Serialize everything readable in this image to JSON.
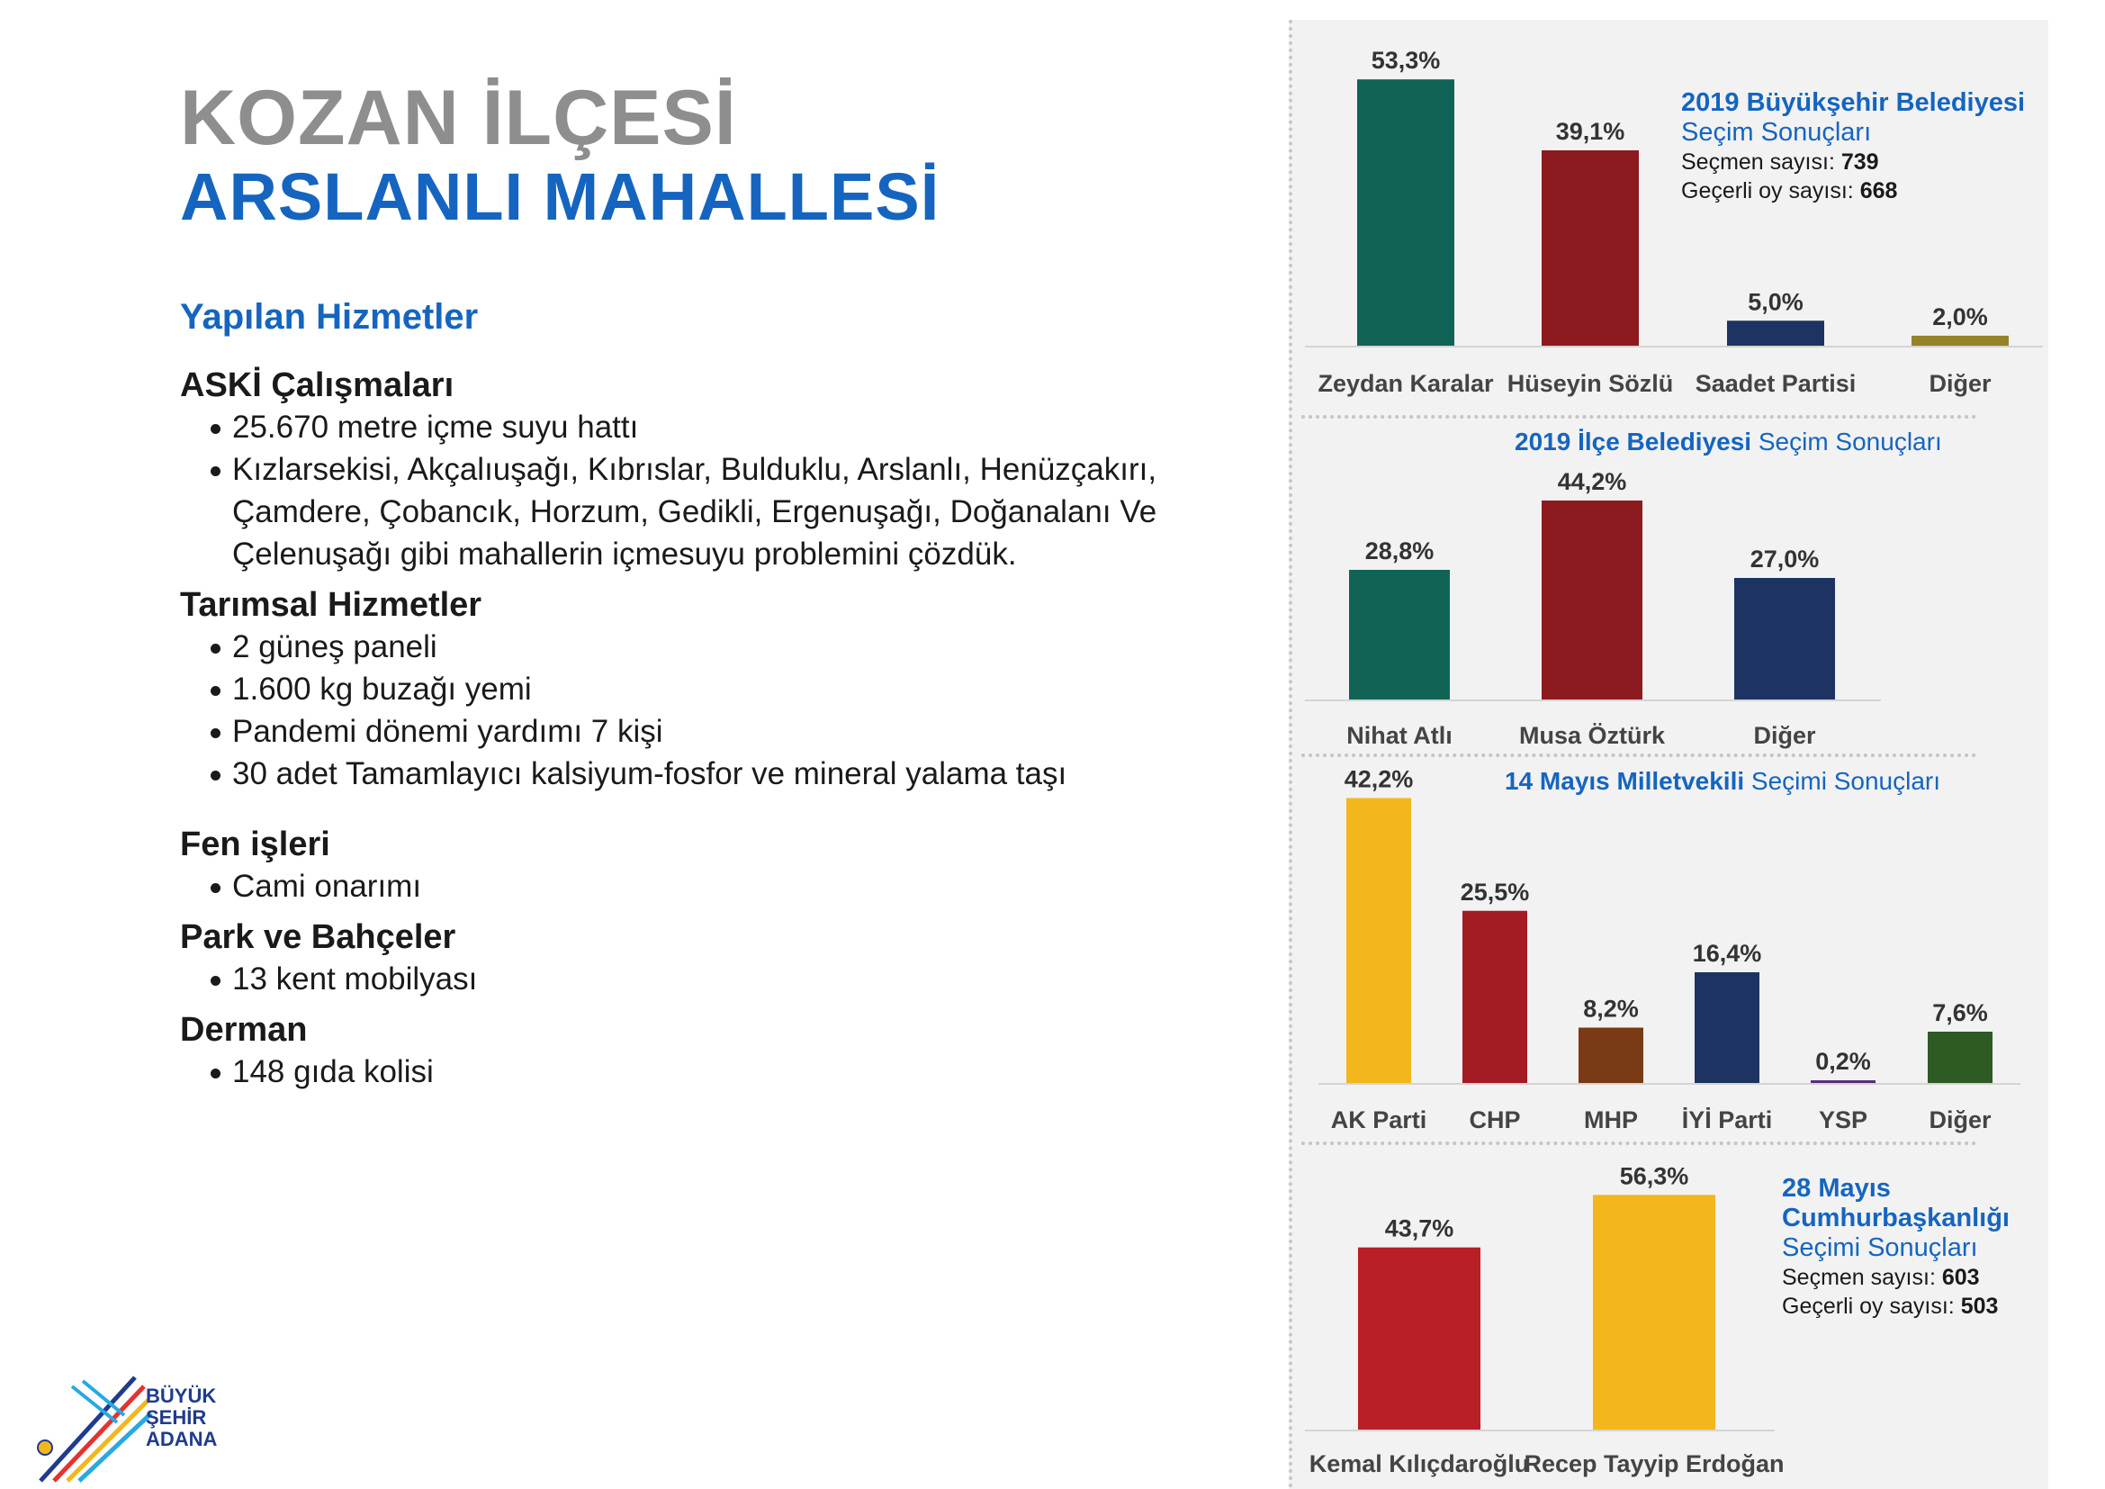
{
  "page": {
    "title_line1": "KOZAN İLÇESİ",
    "title_line2": "ARSLANLI MAHALLESİ",
    "services_heading": "Yapılan Hizmetler"
  },
  "services": [
    {
      "title": "ASKİ Çalışmaları",
      "items": [
        "25.670 metre içme suyu hattı",
        "Kızlarsekisi, Akçalıuşağı, Kıbrıslar, Bulduklu, Arslanlı, Henüzçakırı, Çamdere, Çobancık, Horzum, Gedikli, Ergenuşağı, Doğanalanı Ve Çelenuşağı gibi mahallerin içmesuyu problemini çözdük."
      ]
    },
    {
      "title": "Tarımsal Hizmetler",
      "items": [
        "2 güneş paneli",
        "1.600 kg buzağı yemi",
        "Pandemi dönemi yardımı 7 kişi",
        "30 adet Tamamlayıcı kalsiyum-fosfor ve mineral yalama taşı"
      ]
    },
    {
      "title": "Fen işleri",
      "items": [
        "Cami onarımı"
      ]
    },
    {
      "title": "Park ve Bahçeler",
      "items": [
        "13 kent mobilyası"
      ]
    },
    {
      "title": "Derman",
      "items": [
        "148 gıda kolisi"
      ]
    }
  ],
  "logo": {
    "line1": "BÜYÜK",
    "line2": "ŞEHİR",
    "line3": "ADANA"
  },
  "colors": {
    "accent": "#1565c0",
    "title_gray": "#8e8e8e",
    "panel_bg": "#f2f2f2"
  },
  "chart_data": [
    {
      "type": "bar",
      "title_bold": "2019 Büyükşehir Belediyesi",
      "title_rest": "Seçim Sonuçları",
      "voters_label": "Seçmen sayısı:",
      "voters": "739",
      "valid_label": "Geçerli oy sayısı:",
      "valid": "668",
      "categories": [
        "Zeydan Karalar",
        "Hüseyin Sözlü",
        "Saadet Partisi",
        "Diğer"
      ],
      "values": [
        53.3,
        39.1,
        5.0,
        2.0
      ],
      "labels": [
        "53,3%",
        "39,1%",
        "5,0%",
        "2,0%"
      ],
      "colors": [
        "#116455",
        "#8c1a1f",
        "#1d3361",
        "#958327"
      ]
    },
    {
      "type": "bar",
      "title_bold": "2019 İlçe Belediyesi",
      "title_rest": "Seçim Sonuçları",
      "categories": [
        "Nihat Atlı",
        "Musa Öztürk",
        "Diğer"
      ],
      "values": [
        28.8,
        44.2,
        27.0
      ],
      "labels": [
        "28,8%",
        "44,2%",
        "27,0%"
      ],
      "colors": [
        "#116455",
        "#8c1a1f",
        "#1d3361"
      ]
    },
    {
      "type": "bar",
      "title_bold": "14 Mayıs Milletvekili",
      "title_rest": "Seçimi Sonuçları",
      "categories": [
        "AK Parti",
        "CHP",
        "MHP",
        "İYİ Parti",
        "YSP",
        "Diğer"
      ],
      "values": [
        42.2,
        25.5,
        8.2,
        16.4,
        0.2,
        7.6
      ],
      "labels": [
        "42,2%",
        "25,5%",
        "8,2%",
        "16,4%",
        "0,2%",
        "7,6%"
      ],
      "colors": [
        "#f3b71d",
        "#a31b23",
        "#7a3a16",
        "#1d3361",
        "#5b2b7a",
        "#2e5a24"
      ]
    },
    {
      "type": "bar",
      "title_bold": "28 Mayıs Cumhurbaşkanlığı",
      "title_rest": "Seçimi Sonuçları",
      "voters_label": "Seçmen sayısı:",
      "voters": "603",
      "valid_label": "Geçerli oy sayısı:",
      "valid": "503",
      "categories": [
        "Kemal Kılıçdaroğlu",
        "Recep Tayyip Erdoğan"
      ],
      "values": [
        43.7,
        56.3
      ],
      "labels": [
        "43,7%",
        "56,3%"
      ],
      "colors": [
        "#b81f27",
        "#f3b71d"
      ]
    }
  ]
}
